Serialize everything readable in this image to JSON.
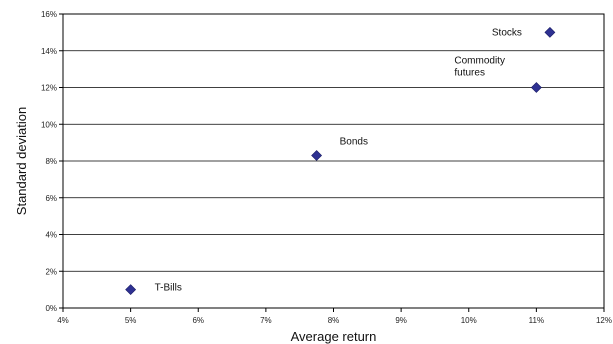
{
  "chart_data": {
    "type": "scatter",
    "xlabel": "Average return",
    "ylabel": "Standard deviation",
    "xlim": [
      0.04,
      0.12
    ],
    "ylim": [
      0.0,
      0.16
    ],
    "x_ticks": [
      "4%",
      "5%",
      "6%",
      "7%",
      "8%",
      "9%",
      "10%",
      "11%",
      "12%"
    ],
    "y_ticks": [
      "0%",
      "2%",
      "4%",
      "6%",
      "8%",
      "10%",
      "12%",
      "14%",
      "16%"
    ],
    "grid": "horizontal",
    "marker_color": "#2e3192",
    "points": [
      {
        "label": [
          "T-Bills"
        ],
        "x": 0.05,
        "y": 0.01
      },
      {
        "label": [
          "Bonds"
        ],
        "x": 0.0775,
        "y": 0.083
      },
      {
        "label": [
          "Commodity",
          "futures"
        ],
        "x": 0.11,
        "y": 0.12
      },
      {
        "label": [
          "Stocks"
        ],
        "x": 0.112,
        "y": 0.15
      }
    ]
  }
}
